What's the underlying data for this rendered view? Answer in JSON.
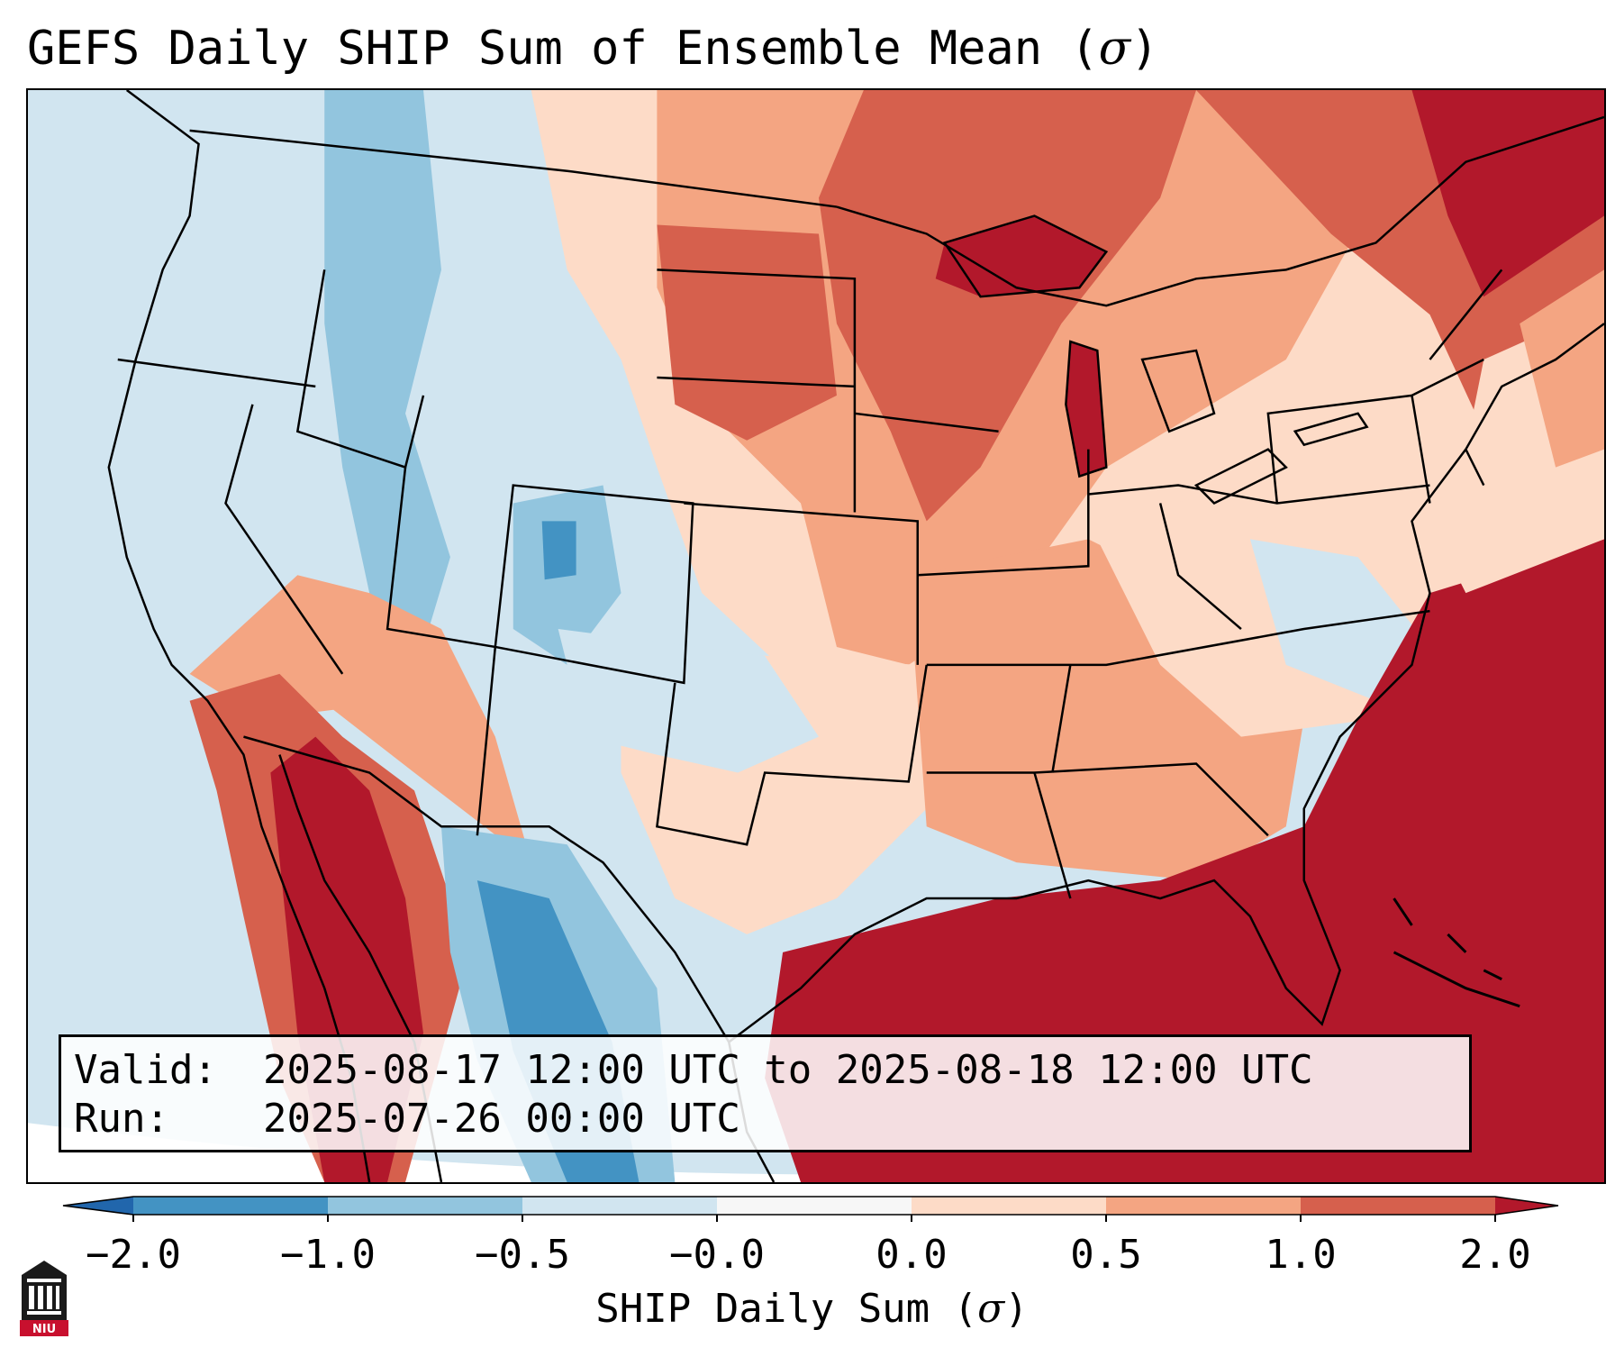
{
  "title": {
    "text": "GEFS Daily SHIP Sum of Ensemble Mean (",
    "symbol": "σ",
    "suffix": ")"
  },
  "info": {
    "valid_label": "Valid:",
    "valid_value": "2025-08-17 12:00 UTC to 2025-08-18 12:00 UTC",
    "run_label": "Run:",
    "run_value": "2025-07-26 00:00 UTC"
  },
  "colorbar": {
    "ticks": [
      "−2.0",
      "−1.0",
      "−0.5",
      "−0.0",
      "0.0",
      "0.5",
      "1.0",
      "2.0"
    ],
    "label": {
      "text": "SHIP Daily Sum (",
      "symbol": "σ",
      "suffix": ")"
    },
    "bins": [
      {
        "range": "below -2.0",
        "color": "#2166ac"
      },
      {
        "range": "-2.0 to -1.0",
        "color": "#4393c3"
      },
      {
        "range": "-1.0 to -0.5",
        "color": "#92c5de"
      },
      {
        "range": "-0.5 to -0.0",
        "color": "#d1e5f0"
      },
      {
        "range": "-0.0 to 0.0",
        "color": "#f7f7f7"
      },
      {
        "range": "0.0 to 0.5",
        "color": "#fddbc7"
      },
      {
        "range": "0.5 to 1.0",
        "color": "#f4a582"
      },
      {
        "range": "1.0 to 2.0",
        "color": "#d6604d"
      },
      {
        "range": "above 2.0",
        "color": "#b2182b"
      }
    ]
  },
  "logo": {
    "text": "NIU",
    "color": "#c8102e"
  }
}
